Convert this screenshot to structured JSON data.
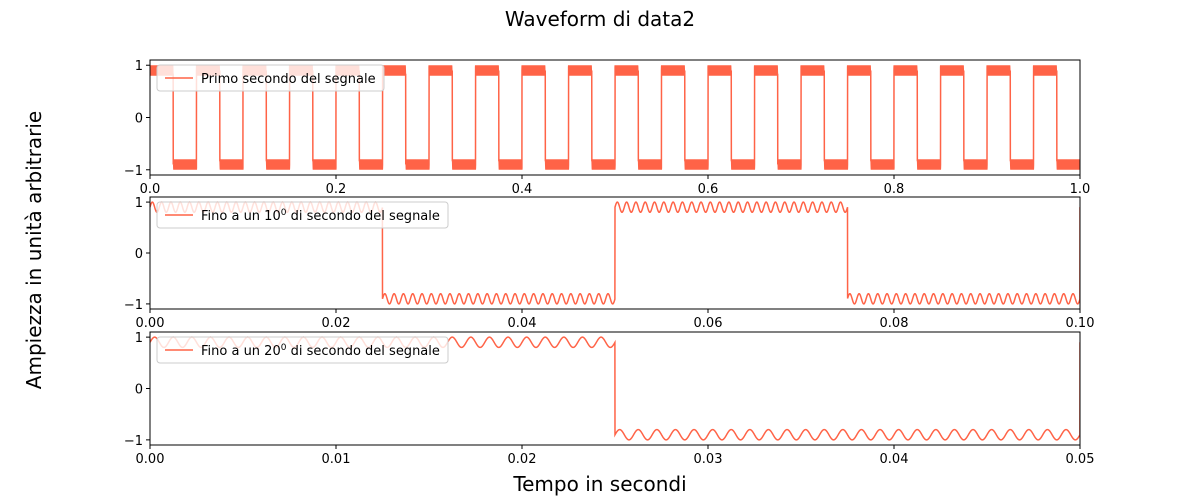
{
  "figure": {
    "title": "Waveform di data2",
    "xlabel": "Tempo in secondi",
    "ylabel": "Ampiezza in unità arbitrarie"
  },
  "chart_data": [
    {
      "type": "line",
      "title": "",
      "xlabel": "",
      "ylabel": "",
      "xlim": [
        0,
        1.0
      ],
      "ylim": [
        -1.1,
        1.1
      ],
      "xticks": [
        "0.0",
        "0.2",
        "0.4",
        "0.6",
        "0.8",
        "1.0"
      ],
      "yticks": [
        "1",
        "0",
        "−1"
      ],
      "legend": {
        "placement": "top-left",
        "prefix": "Primo secondo del segnale",
        "exp": "",
        "suffix": ""
      },
      "series": [
        {
          "name": "Primo secondo del segnale",
          "color": "#ff6347",
          "waveform": {
            "kind": "square",
            "frequency_hz": 20,
            "high": [
              0.8,
              1.0
            ],
            "low": [
              -1.0,
              -0.8
            ],
            "ripple_hz": 1000,
            "start_level": "high"
          }
        }
      ],
      "grid": false
    },
    {
      "type": "line",
      "title": "",
      "xlabel": "",
      "ylabel": "",
      "xlim": [
        0,
        0.1
      ],
      "ylim": [
        -1.1,
        1.1
      ],
      "xticks": [
        "0.00",
        "0.02",
        "0.04",
        "0.06",
        "0.08",
        "0.10"
      ],
      "yticks": [
        "1",
        "0",
        "−1"
      ],
      "legend": {
        "placement": "top-left",
        "prefix": "Fino a un 10",
        "exp": "0",
        "suffix": " di secondo del segnale"
      },
      "series": [
        {
          "name": "Fino a un 10^0 di secondo del segnale",
          "color": "#ff6347",
          "waveform": {
            "kind": "square",
            "frequency_hz": 20,
            "high": [
              0.8,
              1.0
            ],
            "low": [
              -1.0,
              -0.8
            ],
            "ripple_hz": 1000,
            "start_level": "high"
          }
        }
      ],
      "grid": false
    },
    {
      "type": "line",
      "title": "",
      "xlabel": "",
      "ylabel": "",
      "xlim": [
        0,
        0.05
      ],
      "ylim": [
        -1.1,
        1.1
      ],
      "xticks": [
        "0.00",
        "0.01",
        "0.02",
        "0.03",
        "0.04",
        "0.05"
      ],
      "yticks": [
        "1",
        "0",
        "−1"
      ],
      "legend": {
        "placement": "top-left",
        "prefix": "Fino a un 20",
        "exp": "0",
        "suffix": " di secondo del segnale"
      },
      "series": [
        {
          "name": "Fino a un 20^0 di secondo del segnale",
          "color": "#ff6347",
          "waveform": {
            "kind": "square",
            "frequency_hz": 20,
            "high": [
              0.8,
              1.0
            ],
            "low": [
              -1.0,
              -0.8
            ],
            "ripple_hz": 1000,
            "start_level": "high"
          }
        }
      ],
      "grid": false
    }
  ]
}
